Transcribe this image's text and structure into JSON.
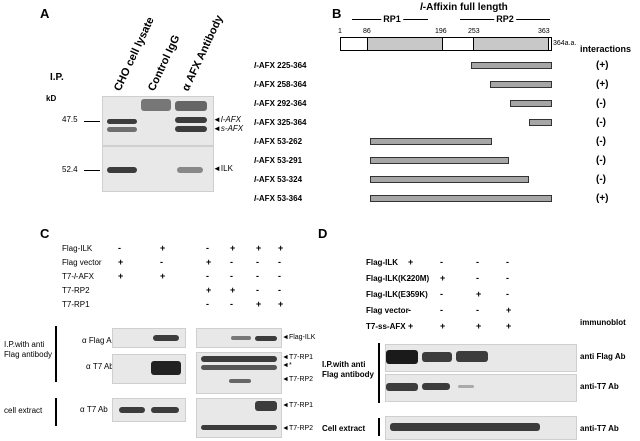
{
  "panelA": {
    "letter": "A",
    "ip_label": "I.P.",
    "kd_label": "kD",
    "lanes": [
      "CHO cell lysate",
      "Control IgG",
      "α AFX Antibody"
    ],
    "marker_top": "47.5",
    "marker_bottom": "52.4",
    "band_label_1": "l-AFX",
    "band_label_2": "s-AFX",
    "band_label_3": "ILK"
  },
  "panelB": {
    "letter": "B",
    "title_prefix": "l",
    "title_rest": "-Affixin full length",
    "rp1": "RP1",
    "rp2": "RP2",
    "ticks": [
      "1",
      "86",
      "196",
      "253",
      "363",
      "364a.a."
    ],
    "interactions_header": "interactions",
    "constructs": [
      {
        "label": "l-AFX 225-364",
        "result": "(+)",
        "start": 225,
        "end": 364
      },
      {
        "label": "l-AFX 258-364",
        "result": "(+)",
        "start": 258,
        "end": 364
      },
      {
        "label": "l-AFX 292-364",
        "result": "(-)",
        "start": 292,
        "end": 364
      },
      {
        "label": "l-AFX 325-364",
        "result": "(-)",
        "start": 325,
        "end": 364
      },
      {
        "label": "l-AFX 53-262",
        "result": "(-)",
        "start": 53,
        "end": 262
      },
      {
        "label": "l-AFX 53-291",
        "result": "(-)",
        "start": 53,
        "end": 291
      },
      {
        "label": "l-AFX 53-324",
        "result": "(-)",
        "start": 53,
        "end": 324
      },
      {
        "label": "l-AFX 53-364",
        "result": "(+)",
        "start": 53,
        "end": 364
      }
    ]
  },
  "panelC": {
    "letter": "C",
    "rows": [
      {
        "label": "Flag-ILK",
        "left": [
          "-",
          "+"
        ],
        "right": [
          "-",
          "+",
          "+",
          "+"
        ]
      },
      {
        "label": "Flag vector",
        "left": [
          "+",
          "-"
        ],
        "right": [
          "+",
          "-",
          "-",
          "-"
        ]
      },
      {
        "label": "T7-l-AFX",
        "left": [
          "+",
          "+"
        ],
        "right": [
          "-",
          "-",
          "-",
          "-"
        ]
      },
      {
        "label": "T7-RP2",
        "left": [],
        "right": [
          "+",
          "+",
          "-",
          "-"
        ]
      },
      {
        "label": "T7-RP1",
        "left": [],
        "right": [
          "-",
          "-",
          "+",
          "+"
        ]
      }
    ],
    "ip_label_1": "I.P.with anti",
    "ip_label_2": "Flag antibody",
    "cell_extract": "cell extract",
    "ab_flag": "α Flag Ab",
    "ab_t7_1": "α T7 Ab",
    "ab_t7_2": "α T7 Ab",
    "right_labels": [
      "Flag-ILK",
      "T7-RP1",
      "T7-RP2",
      "T7-RP1",
      "T7-RP2"
    ],
    "asterisk": "*"
  },
  "panelD": {
    "letter": "D",
    "rows": [
      {
        "label": "Flag-ILK",
        "values": [
          "+",
          "-",
          "-",
          "-"
        ]
      },
      {
        "label": "Flag-ILK(K220M)",
        "values": [
          "-",
          "+",
          "-",
          "-"
        ]
      },
      {
        "label": "Flag-ILK(E359K)",
        "values": [
          "-",
          "-",
          "+",
          "-"
        ]
      },
      {
        "label": "Flag vector",
        "values": [
          "-",
          "-",
          "-",
          "+"
        ]
      },
      {
        "label": "T7-ss-AFX",
        "values": [
          "+",
          "+",
          "+",
          "+"
        ]
      }
    ],
    "immunoblot": "immunoblot",
    "ip_label_1": "I.P.with anti",
    "ip_label_2": "Flag antibody",
    "cell_extract": "Cell extract",
    "blot_labels": [
      "anti Flag Ab",
      "anti-T7 Ab",
      "anti-T7 Ab"
    ]
  }
}
